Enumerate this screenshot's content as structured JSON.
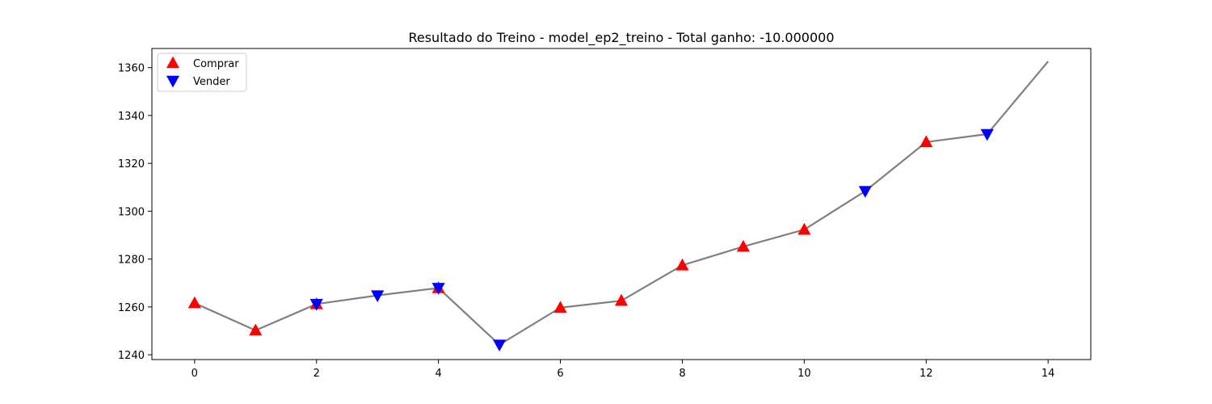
{
  "chart_data": {
    "type": "line",
    "title": "Resultado do Treino - model_ep2_treino - Total ganho: -10.000000",
    "xlabel": "",
    "ylabel": "",
    "xlim": [
      -0.7,
      14.7
    ],
    "ylim": [
      1238,
      1368
    ],
    "x_ticks": [
      0,
      2,
      4,
      6,
      8,
      10,
      12,
      14
    ],
    "y_ticks": [
      1240,
      1260,
      1280,
      1300,
      1320,
      1340,
      1360
    ],
    "grid": false,
    "legend_position": "top-left",
    "series": [
      {
        "x": [
          0,
          1,
          2,
          3,
          4,
          5,
          6,
          7,
          8,
          9,
          10,
          11,
          12,
          13,
          14
        ],
        "values": [
          1261.6,
          1250.2,
          1261.2,
          1264.8,
          1267.9,
          1244.2,
          1259.7,
          1262.6,
          1277.4,
          1285.2,
          1292.3,
          1308.4,
          1328.9,
          1332.2,
          1362.6
        ],
        "color": "#808080"
      }
    ],
    "markers": [
      {
        "name": "Comprar",
        "symbol": "triangle-up",
        "color": "#ff0000",
        "points": [
          [
            0,
            1261.6
          ],
          [
            1,
            1250.2
          ],
          [
            2,
            1261.2
          ],
          [
            4,
            1267.9
          ],
          [
            6,
            1259.7
          ],
          [
            7,
            1262.6
          ],
          [
            8,
            1277.4
          ],
          [
            9,
            1285.2
          ],
          [
            10,
            1292.3
          ],
          [
            12,
            1328.9
          ]
        ]
      },
      {
        "name": "Vender",
        "symbol": "triangle-down",
        "color": "#0000ff",
        "points": [
          [
            2,
            1261.2
          ],
          [
            3,
            1264.8
          ],
          [
            4,
            1267.9
          ],
          [
            5,
            1244.2
          ],
          [
            11,
            1308.4
          ],
          [
            13,
            1332.2
          ]
        ]
      }
    ]
  }
}
